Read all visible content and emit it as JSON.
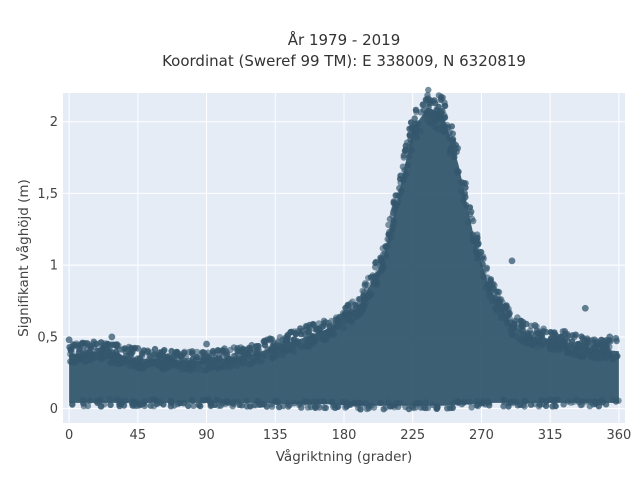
{
  "chart_data": {
    "type": "scatter",
    "title_lines": [
      "År 1979 - 2019",
      "Koordinat (Sweref 99 TM): E 338009, N 6320819"
    ],
    "xlabel": "Vågriktning (grader)",
    "ylabel": "Signifikant våghöjd (m)",
    "xlim": [
      -4,
      364
    ],
    "ylim": [
      -0.1,
      2.2
    ],
    "x_ticks": [
      0,
      45,
      90,
      135,
      180,
      225,
      270,
      315,
      360
    ],
    "x_tick_labels": [
      "0",
      "45",
      "90",
      "135",
      "180",
      "225",
      "270",
      "315",
      "360"
    ],
    "y_ticks": [
      0,
      0.5,
      1,
      1.5,
      2
    ],
    "y_tick_labels": [
      "0",
      "0,5",
      "1",
      "1,5",
      "2"
    ],
    "grid": true,
    "marker_color": "#34576d",
    "plot_bg_color": "#e5ecf6",
    "envelope": {
      "direction": [
        0,
        20,
        45,
        90,
        120,
        150,
        170,
        190,
        205,
        215,
        225,
        235,
        245,
        255,
        265,
        275,
        290,
        305,
        320,
        340,
        360
      ],
      "min_height": [
        0.04,
        0.04,
        0.04,
        0.04,
        0.04,
        0.03,
        0.03,
        0.02,
        0.02,
        0.02,
        0.02,
        0.02,
        0.02,
        0.03,
        0.03,
        0.04,
        0.04,
        0.04,
        0.04,
        0.04,
        0.04
      ],
      "max_height": [
        0.38,
        0.4,
        0.35,
        0.33,
        0.38,
        0.48,
        0.56,
        0.72,
        1.02,
        1.45,
        1.95,
        2.1,
        2.05,
        1.7,
        1.2,
        0.85,
        0.58,
        0.5,
        0.48,
        0.42,
        0.4
      ]
    },
    "outliers": [
      {
        "x": 0,
        "y": 0.48
      },
      {
        "x": 28,
        "y": 0.5
      },
      {
        "x": 45,
        "y": 0.42
      },
      {
        "x": 90,
        "y": 0.45
      },
      {
        "x": 140,
        "y": 0.48
      },
      {
        "x": 168,
        "y": 0.6
      },
      {
        "x": 282,
        "y": 0.74
      },
      {
        "x": 290,
        "y": 1.03
      },
      {
        "x": 305,
        "y": 0.58
      },
      {
        "x": 318,
        "y": 0.52
      },
      {
        "x": 338,
        "y": 0.7
      },
      {
        "x": 354,
        "y": 0.5
      },
      {
        "x": 358,
        "y": 0.49
      }
    ]
  }
}
